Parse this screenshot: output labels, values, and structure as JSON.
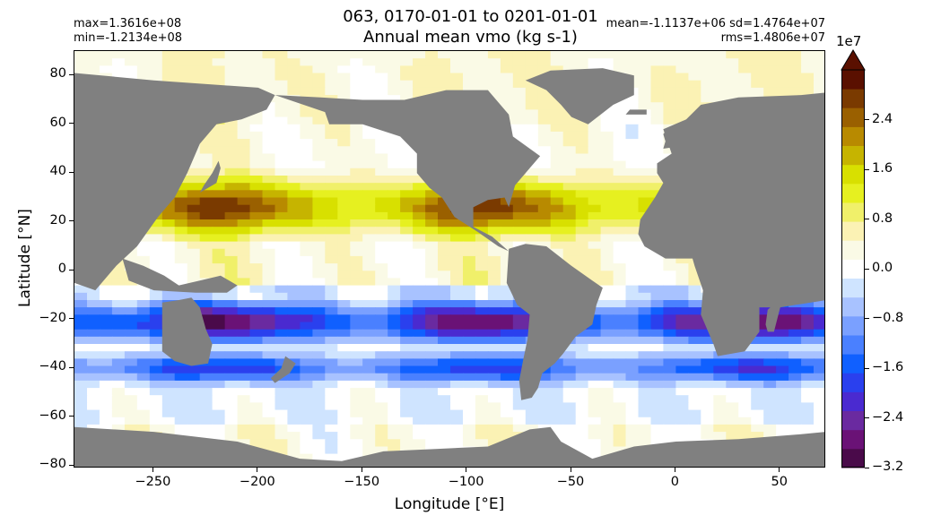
{
  "figure": {
    "title_line1": "063, 0170-01-01 to 0201-01-01",
    "title_line2": "Annual mean vmo (kg s-1)",
    "stats_left": [
      "max=1.3616e+08",
      "min=-1.2134e+08"
    ],
    "stats_right": [
      "mean=-1.1137e+06 sd=1.4764e+07",
      "rms=1.4806e+07"
    ],
    "xlabel": "Longitude [°E]",
    "ylabel": "Latitude [°N]"
  },
  "axes": {
    "x_ticks": [
      "−250",
      "−200",
      "−150",
      "−100",
      "−50",
      "0",
      "50"
    ],
    "y_ticks": [
      "80",
      "60",
      "40",
      "20",
      "0",
      "−20",
      "−40",
      "−60",
      "−80"
    ]
  },
  "colorbar": {
    "exponent_label": "1e7",
    "tick_labels": [
      "2.4",
      "1.6",
      "0.8",
      "0.0",
      "−0.8",
      "−1.6",
      "−2.4",
      "−3.2"
    ],
    "extend": "max",
    "colors": [
      "#4a0a4a",
      "#6a1276",
      "#6a2aa0",
      "#4a2ad0",
      "#2a40ee",
      "#1060ff",
      "#4a80ff",
      "#7aa0ff",
      "#a8c2ff",
      "#cfe4ff",
      "#ffffff",
      "#fafae6",
      "#fbf2b4",
      "#f0f06a",
      "#e6f020",
      "#d8e000",
      "#c6b400",
      "#b88a00",
      "#9a6000",
      "#7a3a00",
      "#5a1000"
    ]
  },
  "chart_data": {
    "type": "heatmap",
    "title": "063, 0170-01-01 to 0201-01-01 Annual mean vmo (kg s-1)",
    "xlabel": "Longitude [°E]",
    "ylabel": "Latitude [°N]",
    "xlim": [
      -288,
      72
    ],
    "ylim": [
      -81,
      90
    ],
    "x_ticks": [
      -250,
      -200,
      -150,
      -100,
      -50,
      0,
      50
    ],
    "y_ticks": [
      80,
      60,
      40,
      20,
      0,
      -20,
      -40,
      -60,
      -80
    ],
    "colorbar": {
      "label": "1e7",
      "scale": 10000000,
      "vmin": -3.2,
      "vmax": 3.2,
      "ticks": [
        -3.2,
        -2.4,
        -1.6,
        -0.8,
        0.0,
        0.8,
        1.6,
        2.4
      ],
      "extend": "max"
    },
    "statistics": {
      "max": 136160000.0,
      "min": -121340000.0,
      "mean": -1113700.0,
      "sd": 14764000.0,
      "rms": 14806000.0
    },
    "land_color": "#808080"
  }
}
